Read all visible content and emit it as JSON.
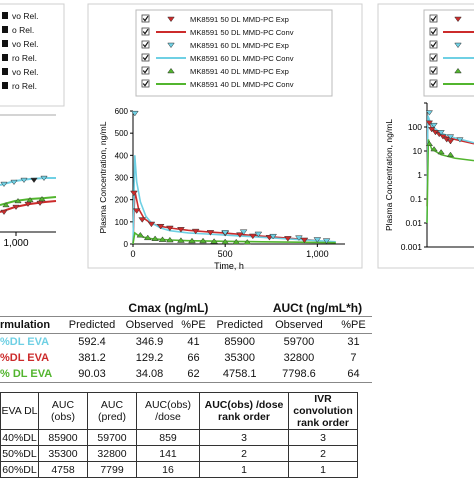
{
  "colors": {
    "red": "#cc2b2b",
    "cyan": "#6fd0e4",
    "green": "#52b52e",
    "axis": "#000000",
    "panel_border": "#cfcfcf",
    "legend_bg": "#ffffff"
  },
  "left_panel": {
    "legend_fragments": [
      "vo Rel.",
      "o Rel.",
      "vo Rel.",
      "ro Rel.",
      "vo Rel.",
      "ro Rel."
    ],
    "tick_label": "1,000"
  },
  "chart_data": [
    {
      "type": "line",
      "xlabel": "Time, h",
      "ylabel": "Plasma Concentration, ng/mL",
      "xlim": [
        0,
        1150
      ],
      "ylim": [
        0,
        600
      ],
      "xticks": [
        0,
        500,
        1000
      ],
      "yticks": [
        0,
        100,
        200,
        300,
        400,
        500,
        600
      ],
      "xtick_labels": [
        "0",
        "500",
        "1,000"
      ],
      "ytick_labels": [
        "0",
        "100",
        "200",
        "300",
        "400",
        "500",
        "600"
      ],
      "legend_position": "top",
      "legend": [
        {
          "label": "MK8591 50 DL MMD-PC Exp",
          "marker": "triangle-down",
          "color": "red"
        },
        {
          "label": "MK8591 50 DL MMD-PC Conv",
          "marker": "line",
          "color": "red"
        },
        {
          "label": "MK8591 60 DL MMD-PC Exp",
          "marker": "triangle-down",
          "color": "cyan"
        },
        {
          "label": "MK8591 60 DL MMD-PC Conv",
          "marker": "line",
          "color": "cyan"
        },
        {
          "label": "MK8591 40 DL MMD-PC Exp",
          "marker": "triangle-up",
          "color": "green"
        },
        {
          "label": "MK8591 40 DL MMD-PC Conv",
          "marker": "line",
          "color": "green"
        }
      ],
      "series": [
        {
          "color": "red",
          "kind": "exp",
          "x": [
            5,
            20,
            50,
            100,
            150,
            200,
            260,
            340,
            420,
            500,
            580,
            650,
            740,
            840,
            930
          ],
          "y": [
            230,
            150,
            110,
            90,
            80,
            72,
            66,
            58,
            52,
            48,
            42,
            36,
            30,
            25,
            18
          ]
        },
        {
          "color": "red",
          "kind": "conv",
          "x": [
            0,
            10,
            30,
            60,
            100,
            150,
            200,
            300,
            400,
            500,
            600,
            700,
            800,
            900,
            1000
          ],
          "y": [
            0,
            240,
            160,
            115,
            92,
            80,
            72,
            62,
            55,
            49,
            42,
            35,
            29,
            22,
            16
          ]
        },
        {
          "color": "cyan",
          "kind": "exp",
          "x": [
            10,
            500,
            600,
            680,
            760,
            900,
            1000,
            1050
          ],
          "y": [
            590,
            52,
            55,
            45,
            35,
            28,
            20,
            15
          ]
        },
        {
          "color": "cyan",
          "kind": "conv",
          "x": [
            0,
            10,
            20,
            40,
            70,
            100,
            150,
            200,
            300,
            400,
            500,
            600,
            700,
            800,
            900,
            1000,
            1100
          ],
          "y": [
            0,
            400,
            280,
            190,
            125,
            95,
            72,
            60,
            50,
            45,
            40,
            35,
            30,
            25,
            20,
            15,
            10
          ]
        },
        {
          "color": "green",
          "kind": "exp",
          "x": [
            40,
            80,
            120,
            160,
            200,
            260,
            320,
            380,
            440,
            500,
            560,
            620
          ],
          "y": [
            40,
            28,
            24,
            20,
            18,
            16,
            14,
            14,
            12,
            10,
            9,
            8
          ]
        },
        {
          "color": "green",
          "kind": "conv",
          "x": [
            0,
            10,
            30,
            60,
            100,
            200,
            300,
            500,
            700,
            900,
            1100
          ],
          "y": [
            0,
            50,
            38,
            30,
            24,
            18,
            15,
            12,
            10,
            8,
            6
          ]
        }
      ]
    },
    {
      "type": "scatter",
      "ylabel": "Plasma Concentration, ng/mL",
      "yscale": "log",
      "ylim": [
        0.001,
        1000
      ],
      "yticks": [
        1000,
        100,
        10,
        1,
        0.1,
        0.01,
        0.001
      ],
      "ytick_labels": [
        "",
        "100",
        "10",
        "1",
        "0.1",
        "0.01",
        "0.001"
      ],
      "legend_position": "top",
      "series": [
        {
          "color": "red",
          "kind": "exp",
          "x": [
            0.05,
            0.1,
            0.18,
            0.26,
            0.34,
            0.42,
            0.5
          ],
          "y": [
            150,
            80,
            60,
            50,
            40,
            30,
            25
          ]
        },
        {
          "color": "red",
          "kind": "conv",
          "x": [
            0.0,
            0.02,
            0.1,
            0.3,
            0.6,
            1.0
          ],
          "y": [
            0.05,
            200,
            90,
            45,
            30,
            20
          ]
        },
        {
          "color": "cyan",
          "kind": "exp",
          "x": [
            0.05,
            0.15,
            0.3,
            0.5,
            0.7
          ],
          "y": [
            400,
            120,
            60,
            40,
            30
          ]
        },
        {
          "color": "cyan",
          "kind": "conv",
          "x": [
            0.0,
            0.02,
            0.1,
            0.3,
            0.6,
            1.0
          ],
          "y": [
            0.01,
            300,
            110,
            55,
            35,
            22
          ]
        },
        {
          "color": "green",
          "kind": "exp",
          "x": [
            0.05,
            0.15,
            0.3,
            0.5
          ],
          "y": [
            20,
            12,
            9,
            7
          ]
        },
        {
          "color": "green",
          "kind": "conv",
          "x": [
            0.0,
            0.03,
            0.1,
            0.3,
            0.6,
            1.0
          ],
          "y": [
            0.01,
            30,
            12,
            7,
            5,
            4
          ]
        }
      ]
    }
  ],
  "pk_table": {
    "group_headers": [
      "Cmax (ng/mL)",
      "AUCt (ng/mL*h)"
    ],
    "sub_headers": [
      "rmulation",
      "Predicted",
      "Observed",
      "%PE",
      "Predicted",
      "Observed",
      "%PE"
    ],
    "rows": [
      {
        "label": "%DL EVA",
        "color": "cyan",
        "values": [
          "592.4",
          "346.9",
          "41",
          "85900",
          "59700",
          "31"
        ]
      },
      {
        "label": "%DL EVA",
        "color": "red",
        "values": [
          "381.2",
          "129.2",
          "66",
          "35300",
          "32800",
          "7"
        ]
      },
      {
        "label": "% DL EVA",
        "color": "green",
        "values": [
          "90.03",
          "34.08",
          "62",
          "4758.1",
          "7798.6",
          "64"
        ]
      }
    ]
  },
  "auc_table": {
    "headers": [
      "EVA DL",
      "AUC (obs)",
      "AUC (pred)",
      "AUC(obs) /dose",
      "AUC(obs) /dose rank order",
      "IVR convolution rank order"
    ],
    "rows": [
      [
        "40%DL",
        "85900",
        "59700",
        "859",
        "3",
        "3"
      ],
      [
        "50%DL",
        "35300",
        "32800",
        "141",
        "2",
        "2"
      ],
      [
        "60%DL",
        "4758",
        "7799",
        "16",
        "1",
        "1"
      ]
    ]
  }
}
